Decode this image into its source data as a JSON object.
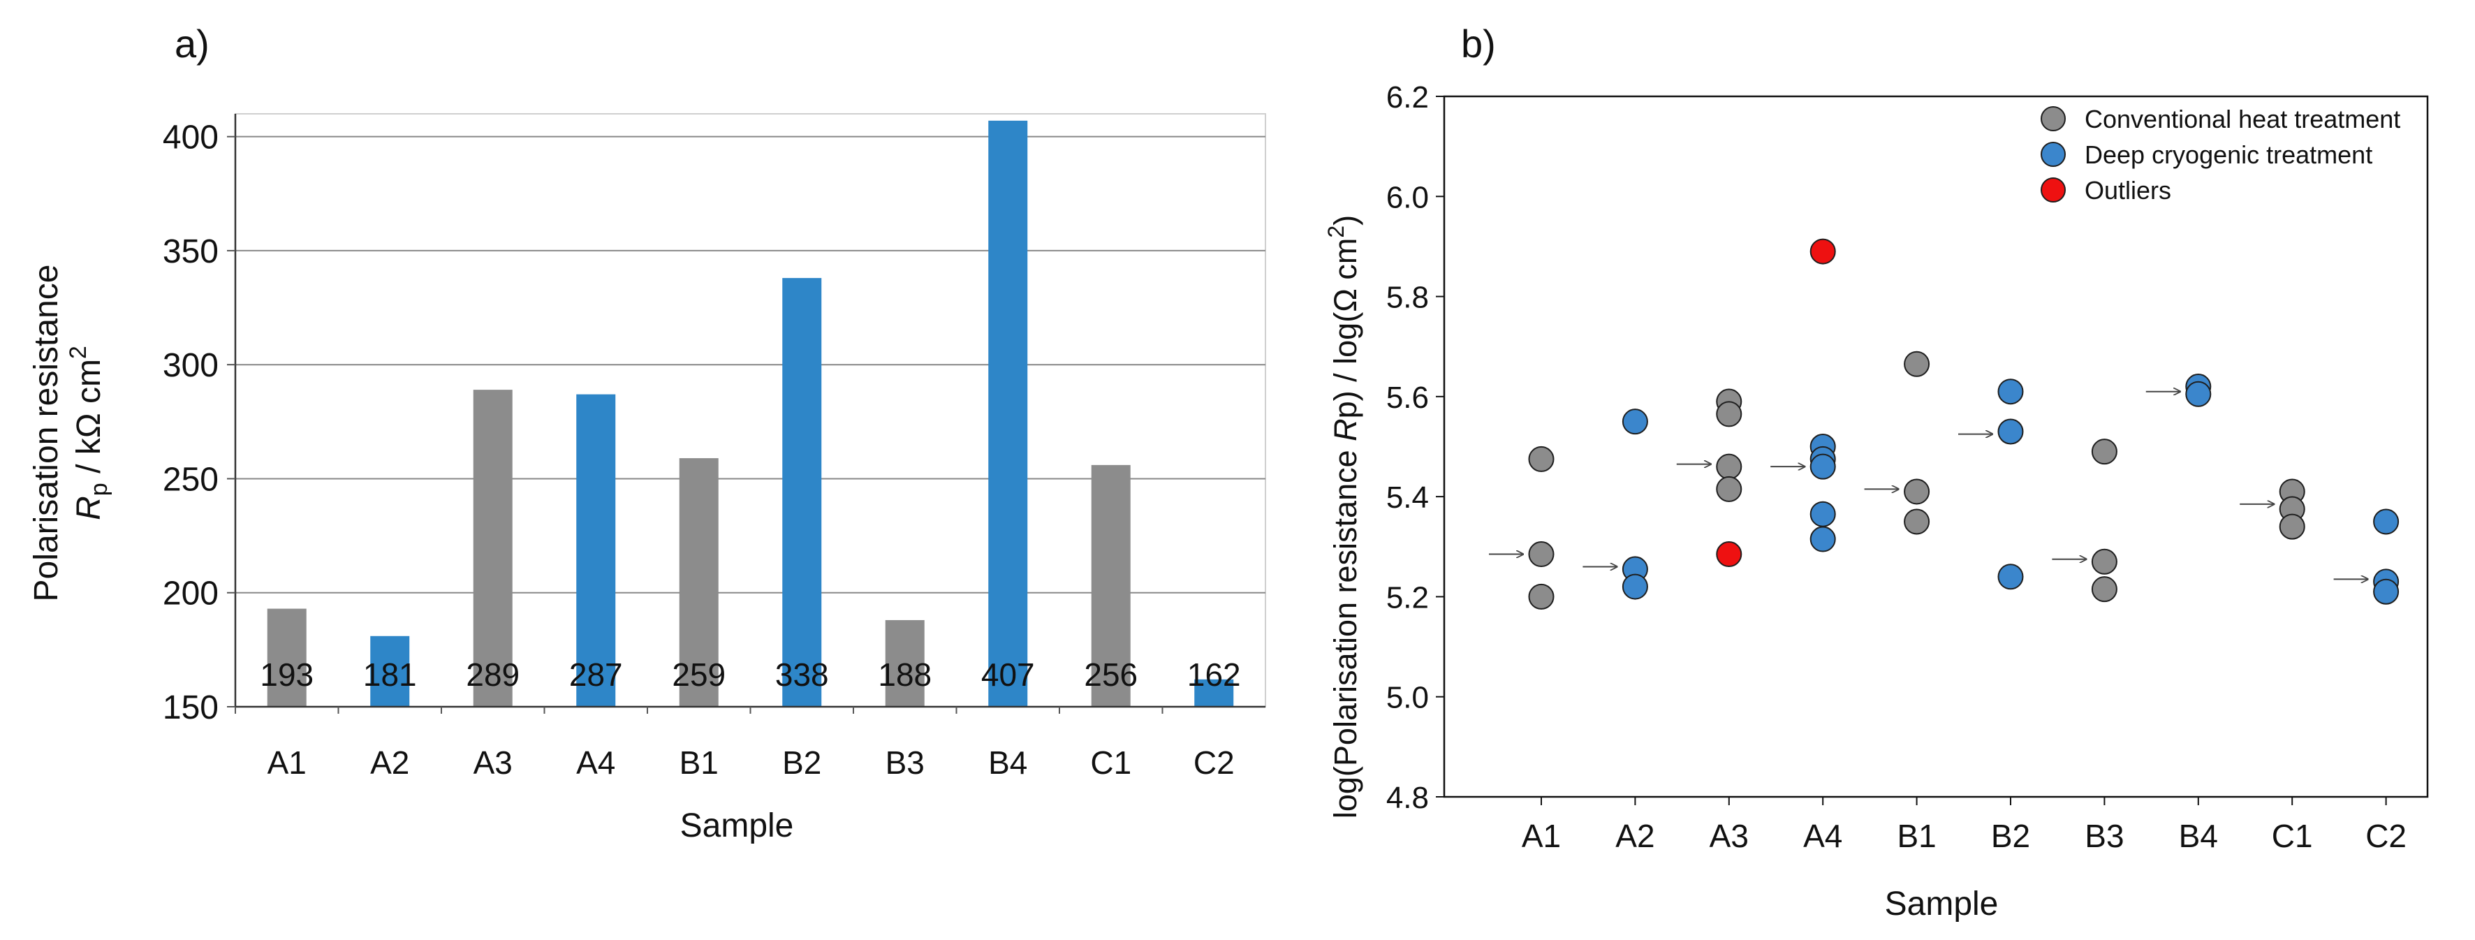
{
  "chart_data": [
    {
      "panel": "a)",
      "type": "bar",
      "categories": [
        "A1",
        "A2",
        "A3",
        "A4",
        "B1",
        "B2",
        "B3",
        "B4",
        "C1",
        "C2"
      ],
      "values": [
        193,
        181,
        289,
        287,
        259,
        338,
        188,
        407,
        256,
        162
      ],
      "labels": [
        "193",
        "181",
        "289",
        "287",
        "259",
        "338",
        "188",
        "407",
        "256",
        "162"
      ],
      "treatments": [
        "conventional",
        "cryogenic",
        "conventional",
        "cryogenic",
        "conventional",
        "cryogenic",
        "conventional",
        "cryogenic",
        "conventional",
        "cryogenic"
      ],
      "xlabel": "Sample",
      "ylabel_line1": "Polarisation resistance",
      "ylabel_symbol": "R",
      "ylabel_subscript": "p",
      "ylabel_unit": " / kΩ cm",
      "ylabel_sup": "2",
      "ylim": [
        150,
        410
      ],
      "yticks": [
        150,
        200,
        250,
        300,
        350,
        400
      ],
      "grid": true,
      "colors": {
        "conventional": "#8c8c8c",
        "cryogenic": "#2e86c8"
      }
    },
    {
      "panel": "b)",
      "type": "scatter",
      "categories": [
        "A1",
        "A2",
        "A3",
        "A4",
        "B1",
        "B2",
        "B3",
        "B4",
        "C1",
        "C2"
      ],
      "ylabel_pre": "log(Polarisation resistance ",
      "ylabel_symbol": "R",
      "ylabel_mid": "p) / log(Ω cm",
      "ylabel_sup": "2",
      "ylabel_end": ")",
      "xlabel": "Sample",
      "ylim": [
        4.8,
        6.2
      ],
      "yticks": [
        "4.8",
        "5.0",
        "5.2",
        "5.4",
        "5.6",
        "5.8",
        "6.0",
        "6.2"
      ],
      "legend": [
        {
          "key": "conventional",
          "label": "Conventional heat treatment",
          "color": "#8c8c8c"
        },
        {
          "key": "cryogenic",
          "label": "Deep cryogenic treatment",
          "color": "#3b86cc"
        },
        {
          "key": "outlier",
          "label": "Outliers",
          "color": "#ee1111"
        }
      ],
      "legend_position": "top-right",
      "series": [
        {
          "name": "Conventional heat treatment",
          "key": "conventional",
          "points": [
            [
              "A1",
              5.475
            ],
            [
              "A1",
              5.285
            ],
            [
              "A1",
              5.2
            ],
            [
              "A3",
              5.59
            ],
            [
              "A3",
              5.565
            ],
            [
              "A3",
              5.46
            ],
            [
              "A3",
              5.415
            ],
            [
              "B1",
              5.665
            ],
            [
              "B1",
              5.41
            ],
            [
              "B1",
              5.35
            ],
            [
              "B3",
              5.49
            ],
            [
              "B3",
              5.27
            ],
            [
              "B3",
              5.215
            ],
            [
              "C1",
              5.41
            ],
            [
              "C1",
              5.375
            ],
            [
              "C1",
              5.34
            ]
          ]
        },
        {
          "name": "Deep cryogenic treatment",
          "key": "cryogenic",
          "points": [
            [
              "A2",
              5.55
            ],
            [
              "A2",
              5.255
            ],
            [
              "A2",
              5.22
            ],
            [
              "A4",
              5.5
            ],
            [
              "A4",
              5.475
            ],
            [
              "A4",
              5.46
            ],
            [
              "A4",
              5.365
            ],
            [
              "A4",
              5.315
            ],
            [
              "B2",
              5.61
            ],
            [
              "B2",
              5.53
            ],
            [
              "B2",
              5.24
            ],
            [
              "B4",
              5.62
            ],
            [
              "B4",
              5.605
            ],
            [
              "C2",
              5.35
            ],
            [
              "C2",
              5.23
            ],
            [
              "C2",
              5.21
            ]
          ]
        },
        {
          "name": "Outliers",
          "key": "outlier",
          "points": [
            [
              "A3",
              5.285
            ],
            [
              "A4",
              5.89
            ]
          ]
        }
      ],
      "mean_arrows": [
        [
          "A1",
          5.285
        ],
        [
          "A2",
          5.26
        ],
        [
          "A3",
          5.465
        ],
        [
          "A4",
          5.46
        ],
        [
          "B1",
          5.415
        ],
        [
          "B2",
          5.525
        ],
        [
          "B3",
          5.275
        ],
        [
          "B4",
          5.61
        ],
        [
          "C1",
          5.385
        ],
        [
          "C2",
          5.235
        ]
      ]
    }
  ]
}
